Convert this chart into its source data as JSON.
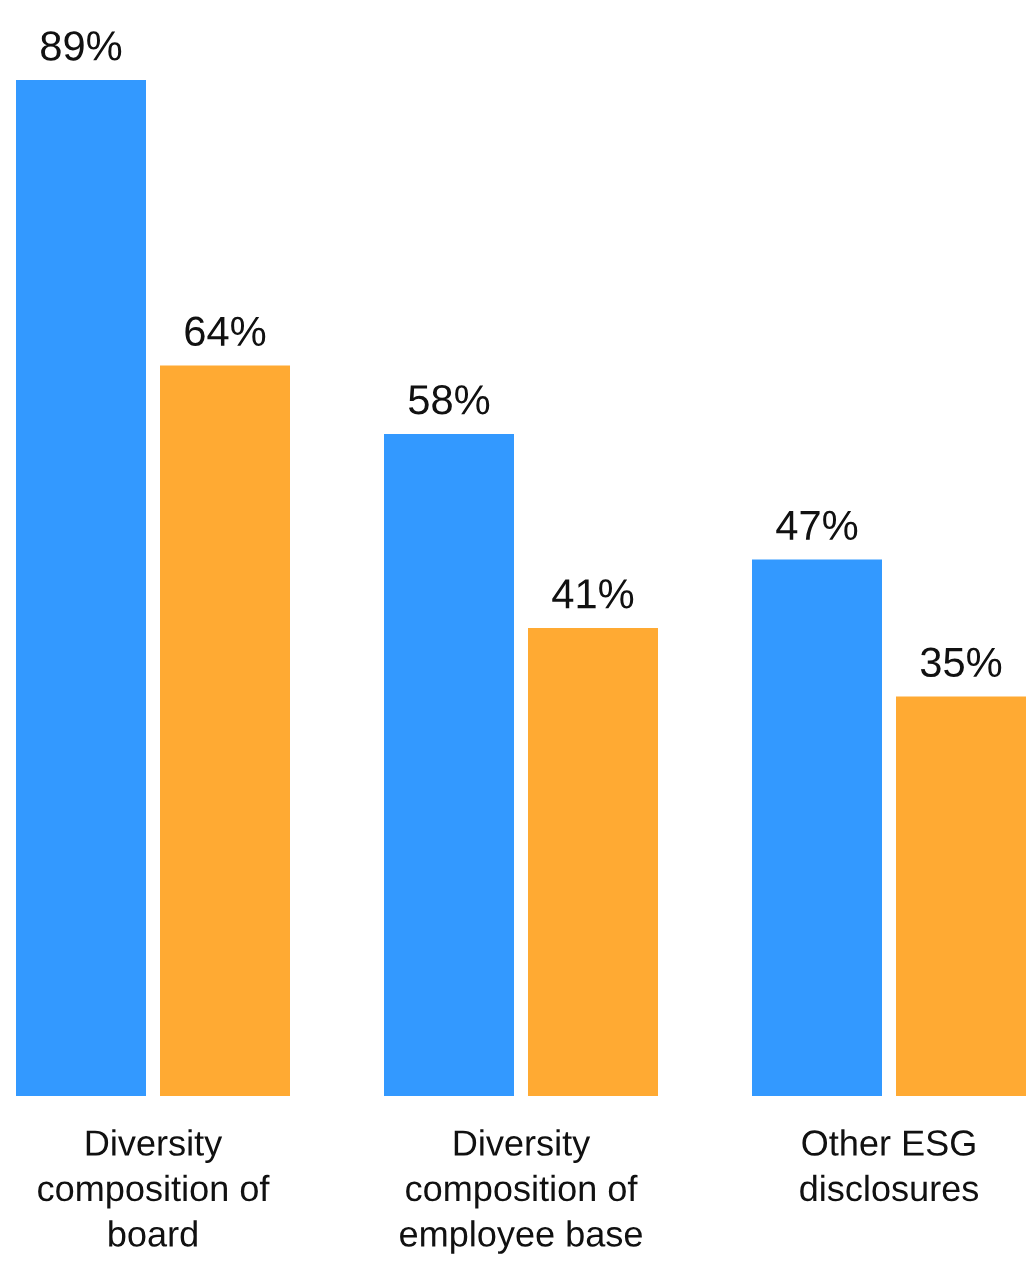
{
  "chart_data": {
    "type": "bar",
    "categories": [
      "Diversity\ncomposition of\nboard",
      "Diversity\ncomposition of\nemployee base",
      "Other ESG\ndisclosures"
    ],
    "series": [
      {
        "color": "#3399ff",
        "values": [
          89,
          58,
          47
        ],
        "value_labels": [
          "89%",
          "58%",
          "47%"
        ]
      },
      {
        "color": "#ffaa33",
        "values": [
          64,
          41,
          35
        ],
        "value_labels": [
          "64%",
          "41%",
          "35%"
        ]
      }
    ],
    "grid": false
  }
}
